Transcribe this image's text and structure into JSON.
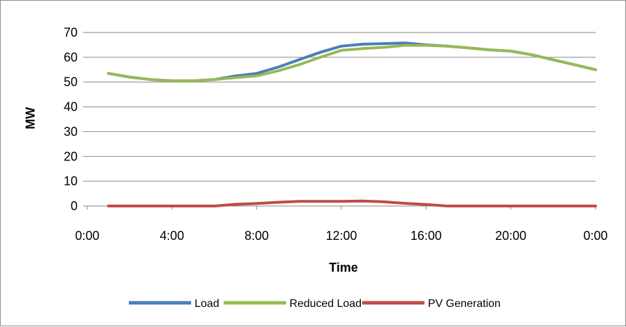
{
  "chart_data": {
    "type": "line",
    "title": "",
    "xlabel": "Time",
    "ylabel": "MW",
    "ylim": [
      0,
      70
    ],
    "yticks": [
      0,
      10,
      20,
      30,
      40,
      50,
      60,
      70
    ],
    "xlim": [
      0,
      24
    ],
    "xticks": [
      {
        "value": 0,
        "label": "0:00"
      },
      {
        "value": 4,
        "label": "4:00"
      },
      {
        "value": 8,
        "label": "8:00"
      },
      {
        "value": 12,
        "label": "12:00"
      },
      {
        "value": 16,
        "label": "16:00"
      },
      {
        "value": 20,
        "label": "20:00"
      },
      {
        "value": 24,
        "label": "0:00"
      }
    ],
    "grid": "horizontal",
    "legend_position": "bottom",
    "x": [
      "1:00",
      "2:00",
      "3:00",
      "4:00",
      "5:00",
      "6:00",
      "7:00",
      "8:00",
      "9:00",
      "10:00",
      "11:00",
      "12:00",
      "13:00",
      "14:00",
      "15:00",
      "16:00",
      "17:00",
      "18:00",
      "19:00",
      "20:00",
      "21:00",
      "22:00",
      "23:00",
      "0:00"
    ],
    "x_hours": [
      1,
      2,
      3,
      4,
      5,
      6,
      7,
      8,
      9,
      10,
      11,
      12,
      13,
      14,
      15,
      16,
      17,
      18,
      19,
      20,
      21,
      22,
      23,
      24
    ],
    "series": [
      {
        "name": "Load",
        "color": "#4a7ebb",
        "values": [
          53.5,
          52.0,
          51.0,
          50.5,
          50.5,
          51.0,
          52.5,
          53.5,
          56.0,
          59.0,
          62.0,
          64.5,
          65.3,
          65.5,
          65.8,
          65.0,
          64.5,
          63.8,
          63.0,
          62.5,
          61.0,
          59.0,
          57.0,
          55.0
        ]
      },
      {
        "name": "Reduced Load",
        "color": "#98b954",
        "values": [
          53.5,
          52.0,
          51.0,
          50.5,
          50.5,
          51.0,
          51.8,
          52.5,
          54.5,
          57.0,
          60.0,
          62.8,
          63.5,
          64.0,
          64.8,
          64.8,
          64.5,
          63.8,
          63.0,
          62.5,
          61.0,
          59.0,
          57.0,
          55.0
        ]
      },
      {
        "name": "PV Generation",
        "color": "#be4b48",
        "values": [
          0,
          0,
          0,
          0,
          0,
          0,
          0.7,
          1.0,
          1.5,
          1.9,
          1.9,
          1.9,
          2.0,
          1.7,
          1.1,
          0.6,
          0,
          0,
          0,
          0,
          0,
          0,
          0,
          0
        ]
      }
    ]
  }
}
